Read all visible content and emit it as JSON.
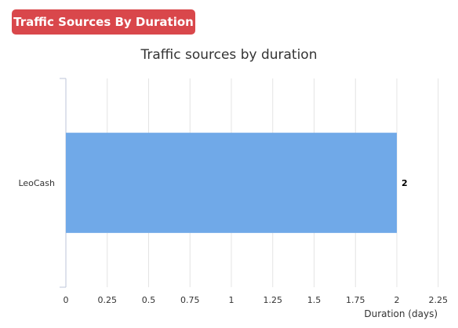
{
  "header": {
    "badge_label": "Traffic Sources By Duration"
  },
  "colors": {
    "badge": "#d9474b",
    "bar": "#70a9e8",
    "grid": "#e4e4e4",
    "axis": "#bcc6d8"
  },
  "chart_data": {
    "type": "bar",
    "orientation": "horizontal",
    "title": "Traffic sources by duration",
    "xlabel": "Duration (days)",
    "ylabel": "",
    "categories": [
      "LeoCash"
    ],
    "values": [
      2
    ],
    "data_labels": [
      "2"
    ],
    "xlim": [
      0,
      2.25
    ],
    "xticks": [
      "0",
      "0.25",
      "0.5",
      "0.75",
      "1",
      "1.25",
      "1.5",
      "1.75",
      "2",
      "2.25"
    ],
    "grid": true,
    "legend": "none"
  }
}
